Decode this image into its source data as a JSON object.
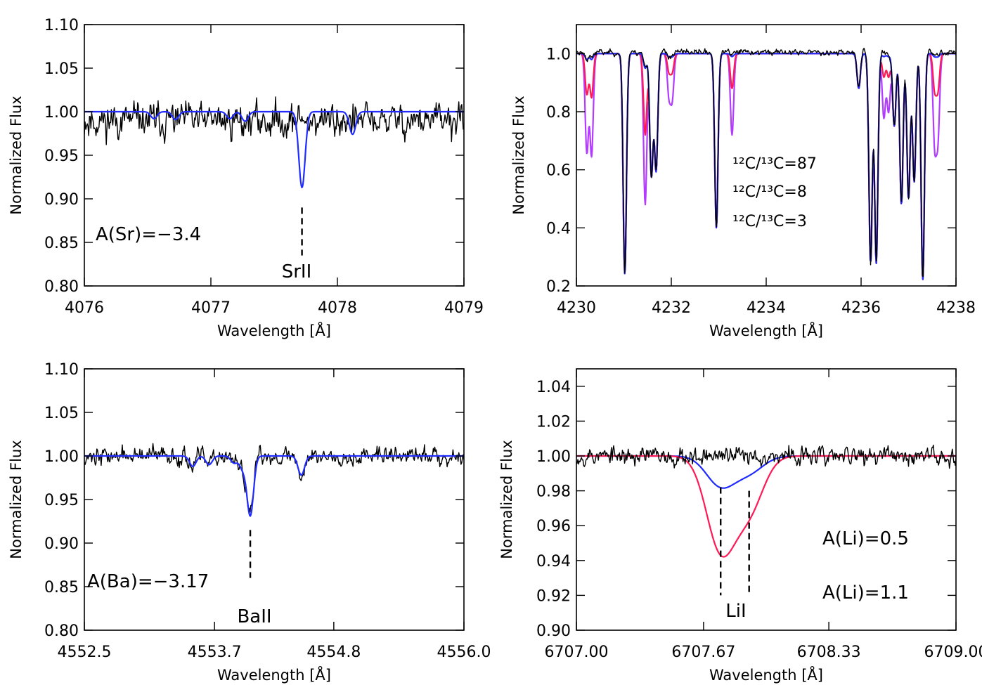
{
  "colors": {
    "observed": "#000000",
    "model_blue": "#1f2bff",
    "model_red": "#ff1a55",
    "model_purple": "#b23bff"
  },
  "chart_data": [
    {
      "type": "line",
      "panel": "top-left",
      "title": "",
      "xlabel": "Wavelength [Å]",
      "ylabel": "Normalized Flux",
      "xlim": [
        4076,
        4079
      ],
      "ylim": [
        0.8,
        1.1
      ],
      "xticks": [
        4076,
        4077,
        4078,
        4079
      ],
      "xtick_labels": [
        "4076",
        "4077",
        "4078",
        "4079"
      ],
      "yticks": [
        0.8,
        0.85,
        0.9,
        0.95,
        1.0,
        1.05,
        1.1
      ],
      "ytick_labels": [
        "0.80",
        "0.85",
        "0.90",
        "0.95",
        "1.00",
        "1.05",
        "1.10"
      ],
      "annotations": [
        {
          "text": "A(Sr)=−3.4",
          "color": "#1f2bff"
        }
      ],
      "line_marks": [
        {
          "label": "SrII",
          "x": 4077.72,
          "y_top": 0.89,
          "y_bottom": 0.835
        }
      ],
      "series": [
        {
          "name": "observed",
          "kind": "noise",
          "color": "#000000",
          "seed": 11,
          "noise": 0.023,
          "base": 0.99
        },
        {
          "name": "synthetic",
          "kind": "model",
          "color": "#1f2bff",
          "width": 0.025,
          "lines": [
            [
              4076.55,
              0.008
            ],
            [
              4076.72,
              0.009
            ],
            [
              4077.15,
              0.008
            ],
            [
              4077.27,
              0.011
            ],
            [
              4077.72,
              0.087
            ],
            [
              4078.12,
              0.026
            ]
          ]
        }
      ]
    },
    {
      "type": "line",
      "panel": "top-right",
      "title": "",
      "xlabel": "Wavelength [Å]",
      "ylabel": "Normalized Flux",
      "xlim": [
        4230,
        4238
      ],
      "ylim": [
        0.2,
        1.1
      ],
      "xticks": [
        4230,
        4232,
        4234,
        4236,
        4238
      ],
      "xtick_labels": [
        "4230",
        "4232",
        "4234",
        "4236",
        "4238"
      ],
      "yticks": [
        0.2,
        0.4,
        0.6,
        0.8,
        1.0
      ],
      "ytick_labels": [
        "0.2",
        "0.4",
        "0.6",
        "0.8",
        "1.0"
      ],
      "legend": [
        {
          "text": "¹²C/¹³C=87",
          "color": "#1f2bff"
        },
        {
          "text": "¹²C/¹³C=8",
          "color": "#ff1a55"
        },
        {
          "text": "¹²C/¹³C=3",
          "color": "#b23bff"
        }
      ],
      "series": [
        {
          "name": "¹²C/¹³C=3",
          "kind": "model",
          "color": "#b23bff",
          "width": 0.035,
          "lines": [
            [
              4230.22,
              0.34
            ],
            [
              4230.32,
              0.35
            ],
            [
              4231.02,
              0.76
            ],
            [
              4231.45,
              0.52
            ],
            [
              4231.58,
              0.42
            ],
            [
              4231.68,
              0.4
            ],
            [
              4231.95,
              0.14
            ],
            [
              4232.02,
              0.15
            ],
            [
              4232.95,
              0.6
            ],
            [
              4233.28,
              0.28
            ],
            [
              4235.95,
              0.12
            ],
            [
              4236.2,
              0.72
            ],
            [
              4236.32,
              0.72
            ],
            [
              4236.48,
              0.22
            ],
            [
              4236.58,
              0.2
            ],
            [
              4236.7,
              0.25
            ],
            [
              4236.85,
              0.52
            ],
            [
              4237.0,
              0.5
            ],
            [
              4237.12,
              0.44
            ],
            [
              4237.3,
              0.78
            ],
            [
              4237.55,
              0.3
            ],
            [
              4237.62,
              0.28
            ]
          ]
        },
        {
          "name": "¹²C/¹³C=8",
          "kind": "model",
          "color": "#ff1a55",
          "width": 0.035,
          "lines": [
            [
              4230.22,
              0.14
            ],
            [
              4230.32,
              0.15
            ],
            [
              4231.02,
              0.76
            ],
            [
              4231.45,
              0.28
            ],
            [
              4231.58,
              0.42
            ],
            [
              4231.68,
              0.4
            ],
            [
              4231.95,
              0.06
            ],
            [
              4232.02,
              0.06
            ],
            [
              4232.95,
              0.6
            ],
            [
              4233.28,
              0.12
            ],
            [
              4235.95,
              0.12
            ],
            [
              4236.2,
              0.72
            ],
            [
              4236.32,
              0.72
            ],
            [
              4236.48,
              0.08
            ],
            [
              4236.58,
              0.08
            ],
            [
              4236.7,
              0.25
            ],
            [
              4236.85,
              0.52
            ],
            [
              4237.0,
              0.5
            ],
            [
              4237.12,
              0.44
            ],
            [
              4237.3,
              0.78
            ],
            [
              4237.55,
              0.12
            ],
            [
              4237.62,
              0.12
            ]
          ]
        },
        {
          "name": "¹²C/¹³C=87",
          "kind": "model",
          "color": "#1f2bff",
          "width": 0.035,
          "lines": [
            [
              4230.22,
              0.02
            ],
            [
              4230.32,
              0.02
            ],
            [
              4231.02,
              0.76
            ],
            [
              4231.45,
              0.05
            ],
            [
              4231.58,
              0.42
            ],
            [
              4231.68,
              0.4
            ],
            [
              4231.95,
              0.01
            ],
            [
              4232.02,
              0.01
            ],
            [
              4232.95,
              0.6
            ],
            [
              4233.28,
              0.01
            ],
            [
              4235.95,
              0.12
            ],
            [
              4236.2,
              0.72
            ],
            [
              4236.32,
              0.72
            ],
            [
              4236.48,
              0.01
            ],
            [
              4236.58,
              0.01
            ],
            [
              4236.7,
              0.25
            ],
            [
              4236.85,
              0.52
            ],
            [
              4237.0,
              0.5
            ],
            [
              4237.12,
              0.44
            ],
            [
              4237.3,
              0.78
            ],
            [
              4237.55,
              0.01
            ],
            [
              4237.62,
              0.01
            ]
          ]
        },
        {
          "name": "observed",
          "kind": "noise",
          "color": "#000000",
          "seed": 23,
          "noise": 0.012,
          "base": 1.005,
          "follow": "¹²C/¹³C=87"
        }
      ]
    },
    {
      "type": "line",
      "panel": "bottom-left",
      "title": "",
      "xlabel": "Wavelength [Å]",
      "ylabel": "Normalized Flux",
      "xlim": [
        4552.5,
        4556.0
      ],
      "ylim": [
        0.8,
        1.1
      ],
      "xticks": [
        4552.5,
        4553.7,
        4554.8,
        4556.0
      ],
      "xtick_labels": [
        "4552.5",
        "4553.7",
        "4554.8",
        "4556.0"
      ],
      "yticks": [
        0.8,
        0.85,
        0.9,
        0.95,
        1.0,
        1.05,
        1.1
      ],
      "ytick_labels": [
        "0.80",
        "0.85",
        "0.90",
        "0.95",
        "1.00",
        "1.05",
        "1.10"
      ],
      "annotations": [
        {
          "text": "A(Ba)=−3.17",
          "color": "#1f2bff"
        }
      ],
      "line_marks": [
        {
          "label": "BaII",
          "x": 4554.03,
          "y_top": 0.915,
          "y_bottom": 0.86
        }
      ],
      "series": [
        {
          "name": "observed",
          "kind": "noise",
          "color": "#000000",
          "seed": 37,
          "noise": 0.012,
          "base": 1.0,
          "follow": "synthetic"
        },
        {
          "name": "synthetic",
          "kind": "model",
          "color": "#1f2bff",
          "width": 0.03,
          "lines": [
            [
              4553.5,
              0.012
            ],
            [
              4553.65,
              0.01
            ],
            [
              4553.88,
              0.008
            ],
            [
              4553.96,
              0.014
            ],
            [
              4554.03,
              0.068
            ],
            [
              4554.5,
              0.022
            ]
          ]
        }
      ]
    },
    {
      "type": "line",
      "panel": "bottom-right",
      "title": "",
      "xlabel": "Wavelength [Å]",
      "ylabel": "Normalized Flux",
      "xlim": [
        6707.0,
        6709.0
      ],
      "ylim": [
        0.9,
        1.05
      ],
      "xticks": [
        6707.0,
        6707.67,
        6708.33,
        6709.0
      ],
      "xtick_labels": [
        "6707.00",
        "6707.67",
        "6708.33",
        "6709.00"
      ],
      "yticks": [
        0.9,
        0.92,
        0.94,
        0.96,
        0.98,
        1.0,
        1.02,
        1.04
      ],
      "ytick_labels": [
        "0.90",
        "0.92",
        "0.94",
        "0.96",
        "0.98",
        "1.00",
        "1.02",
        "1.04"
      ],
      "annotations": [
        {
          "text": "A(Li)=0.5",
          "color": "#1f2bff"
        },
        {
          "text": "A(Li)=1.1",
          "color": "#ff1a55"
        }
      ],
      "line_marks": [
        {
          "label": "LiI",
          "x": 6707.76,
          "y_top": 0.982,
          "y_bottom": 0.92
        },
        {
          "label": "",
          "x": 6707.91,
          "y_top": 0.98,
          "y_bottom": 0.92
        }
      ],
      "series": [
        {
          "name": "A(Li)=0.5",
          "kind": "model",
          "color": "#1f2bff",
          "width": 0.075,
          "lines": [
            [
              6707.76,
              0.017
            ],
            [
              6707.91,
              0.009
            ]
          ]
        },
        {
          "name": "A(Li)=1.1",
          "kind": "model",
          "color": "#ff1a55",
          "width": 0.075,
          "lines": [
            [
              6707.76,
              0.053
            ],
            [
              6707.91,
              0.03
            ]
          ]
        },
        {
          "name": "observed",
          "kind": "noise",
          "color": "#000000",
          "seed": 53,
          "noise": 0.006,
          "base": 1.0
        }
      ]
    }
  ]
}
